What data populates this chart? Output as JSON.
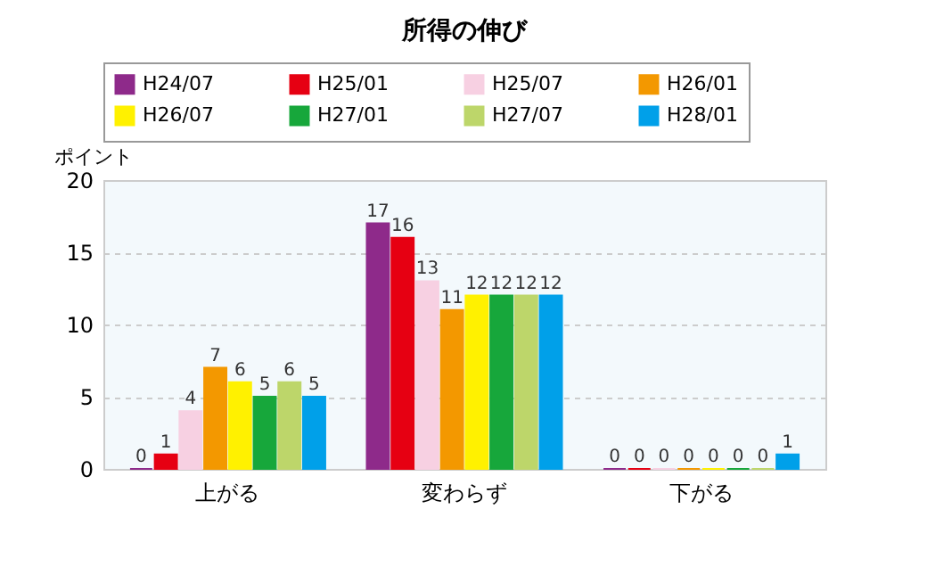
{
  "chart_data": {
    "type": "bar",
    "title": "所得の伸び",
    "ylabel": "ポイント",
    "categories": [
      "上がる",
      "変わらず",
      "下がる"
    ],
    "series": [
      {
        "name": "H24/07",
        "color": "#8e2a8a",
        "values": [
          0,
          17,
          0
        ]
      },
      {
        "name": "H25/01",
        "color": "#e60012",
        "values": [
          1,
          16,
          0
        ]
      },
      {
        "name": "H25/07",
        "color": "#f7d0e2",
        "values": [
          4,
          13,
          0
        ]
      },
      {
        "name": "H26/01",
        "color": "#f39800",
        "values": [
          7,
          11,
          0
        ]
      },
      {
        "name": "H26/07",
        "color": "#fff100",
        "values": [
          6,
          12,
          0
        ]
      },
      {
        "name": "H27/01",
        "color": "#17a73b",
        "values": [
          5,
          12,
          0
        ]
      },
      {
        "name": "H27/07",
        "color": "#bdd66a",
        "values": [
          6,
          12,
          0
        ]
      },
      {
        "name": "H28/01",
        "color": "#00a0e9",
        "values": [
          5,
          12,
          1
        ]
      }
    ],
    "ylim": [
      0,
      20
    ],
    "yticks": [
      0,
      5,
      10,
      15,
      20
    ],
    "grid": "y",
    "legend": "top",
    "data_labels": true
  }
}
